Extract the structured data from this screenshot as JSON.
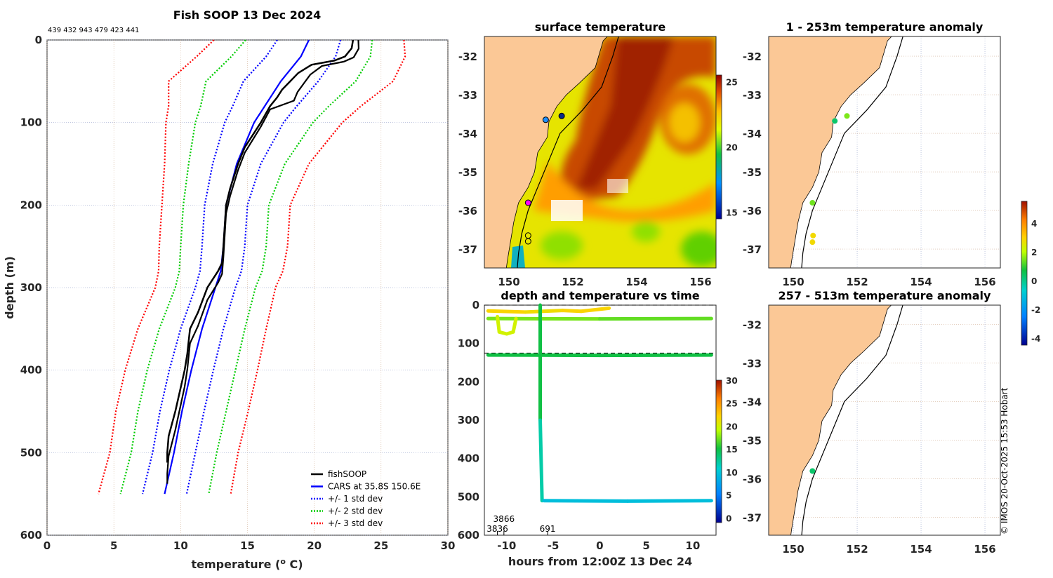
{
  "chart_data": [
    {
      "type": "line",
      "title": "Fish SOOP 13 Dec 2024",
      "subtitle": "439 432 943 479 423 441",
      "xlabel": "temperature (",
      "xlabel_sup": "o",
      "xlabel_end": " C)",
      "ylabel": "depth (m)",
      "xlim": [
        0,
        30
      ],
      "ylim": [
        600,
        0
      ],
      "xticks": [
        0,
        5,
        10,
        15,
        20,
        25,
        30
      ],
      "yticks": [
        0,
        100,
        200,
        300,
        400,
        500,
        600
      ],
      "grid": true,
      "legend_position": "bottom-right",
      "legend": [
        "fishSOOP",
        "CARS at 35.8S 150.6E",
        "+/- 1 std dev",
        "+/- 2 std dev",
        "+/- 3 std dev"
      ],
      "colors": {
        "fishsoop": "#000000",
        "cars": "#0000ff",
        "sd1": "#0000ff",
        "sd2": "#00cc00",
        "sd3": "#ff0000"
      },
      "cars": {
        "depth": [
          0,
          20,
          50,
          80,
          100,
          150,
          200,
          250,
          280,
          300,
          350,
          400,
          450,
          500,
          550
        ],
        "temp": [
          19.6,
          19.0,
          17.5,
          16.3,
          15.5,
          14.2,
          13.4,
          13.2,
          13.0,
          12.6,
          11.6,
          10.8,
          10.1,
          9.5,
          8.8
        ],
        "std": [
          2.37,
          2.6,
          2.8,
          2.4,
          2.2,
          1.8,
          1.6,
          1.6,
          1.55,
          1.5,
          1.6,
          1.65,
          1.65,
          1.6,
          1.65
        ]
      },
      "fishsoop": {
        "depth": [
          0,
          10,
          20,
          25,
          30,
          40,
          50,
          60,
          70,
          80,
          100,
          130,
          150,
          180,
          200,
          250,
          270,
          280,
          300,
          330,
          350,
          380,
          400,
          450,
          480,
          500,
          512
        ],
        "temp": [
          22.9,
          22.8,
          22.3,
          21.5,
          19.8,
          18.8,
          18.2,
          17.6,
          17.2,
          16.7,
          16.0,
          14.8,
          14.3,
          13.7,
          13.4,
          13.2,
          13.1,
          12.8,
          12.0,
          11.3,
          10.7,
          10.5,
          10.3,
          9.6,
          9.1,
          9.0,
          9.0
        ]
      }
    },
    {
      "type": "heatmap",
      "title": "surface temperature",
      "xticks": [
        150,
        152,
        154,
        156
      ],
      "yticks": [
        -32,
        -33,
        -34,
        -35,
        -36,
        -37
      ],
      "xlim": [
        149.23,
        156.48
      ],
      "ylim": [
        -37.5,
        -31.49
      ],
      "colorbar": {
        "range": [
          14.5,
          25.5
        ],
        "ticks": [
          15,
          20,
          25
        ]
      },
      "stations": [
        {
          "lon": 151.15,
          "lat": -33.65,
          "color": "#1e90ff"
        },
        {
          "lon": 151.65,
          "lat": -33.55,
          "color": "#0a2a8a"
        },
        {
          "lon": 150.6,
          "lat": -35.8,
          "color": "#ff00ff"
        },
        {
          "lon": 150.6,
          "lat": -36.65,
          "color": "none"
        },
        {
          "lon": 150.6,
          "lat": -36.8,
          "color": "none"
        }
      ]
    },
    {
      "type": "scatter",
      "title": "depth and temperature vs time",
      "xlabel": "hours from 12:00Z 13 Dec 24",
      "xlim": [
        -12.4,
        12.5
      ],
      "ylim": [
        600,
        0
      ],
      "xticks": [
        -10,
        -5,
        0,
        5,
        10
      ],
      "yticks": [
        0,
        100,
        200,
        300,
        400,
        500,
        600
      ],
      "dashed_depths": [
        0,
        125
      ],
      "colorbar": {
        "range": [
          -1,
          30
        ],
        "ticks": [
          0,
          5,
          10,
          15,
          20,
          25,
          30
        ]
      },
      "annotations": [
        {
          "x": -11,
          "text": "3836"
        },
        {
          "x": -10.3,
          "text": "3866"
        },
        {
          "x": -5.6,
          "text": "691"
        }
      ],
      "tracks": [
        {
          "hours": [
            -12,
            -8,
            -4,
            -2,
            1
          ],
          "depth": [
            15,
            18,
            14,
            16,
            8
          ],
          "temp": [
            22,
            22,
            21.5,
            22,
            22
          ]
        },
        {
          "hours": [
            -12,
            0,
            12
          ],
          "depth": [
            35,
            36,
            35
          ],
          "temp": [
            18,
            17.5,
            17
          ]
        },
        {
          "hours": [
            -11,
            -10.8,
            -10,
            -9.3,
            -9
          ],
          "depth": [
            30,
            70,
            75,
            70,
            35
          ],
          "temp": [
            20,
            20,
            20,
            20,
            20
          ]
        },
        {
          "hours": [
            -6.4,
            -6.4,
            -6.2
          ],
          "depth": [
            0,
            300,
            510
          ],
          "temp": [
            17,
            15,
            12
          ]
        },
        {
          "hours": [
            -12,
            0,
            12
          ],
          "depth": [
            130,
            131,
            130
          ],
          "temp": [
            15,
            15,
            15
          ]
        },
        {
          "hours": [
            -6,
            3,
            12
          ],
          "depth": [
            510,
            511,
            510
          ],
          "temp": [
            9.5,
            9.5,
            9.5
          ]
        }
      ]
    },
    {
      "type": "scatter",
      "title": "1 - 253m temperature anomaly",
      "xticks": [
        150,
        152,
        154,
        156
      ],
      "yticks": [
        -32,
        -33,
        -34,
        -35,
        -36,
        -37
      ],
      "points": [
        {
          "lon": 151.3,
          "lat": -33.68,
          "anom": 0.3
        },
        {
          "lon": 151.68,
          "lat": -33.55,
          "anom": 1.5
        },
        {
          "lon": 150.6,
          "lat": -35.8,
          "anom": 1.4
        },
        {
          "lon": 150.62,
          "lat": -36.65,
          "anom": 2.8
        },
        {
          "lon": 150.6,
          "lat": -36.82,
          "anom": 2.8
        }
      ]
    },
    {
      "type": "scatter",
      "title": "257 - 513m temperature anomaly",
      "xticks": [
        150,
        152,
        154,
        156
      ],
      "yticks": [
        -32,
        -33,
        -34,
        -35,
        -36,
        -37
      ],
      "points": [
        {
          "lon": 150.6,
          "lat": -35.8,
          "anom": 0.3
        }
      ],
      "colorbar": {
        "range": [
          -4.5,
          5.5
        ],
        "ticks": [
          4,
          2,
          0,
          -2,
          -4
        ]
      }
    }
  ],
  "credit": "© IMOS 20-Oct-2025 15:53 Hobart"
}
